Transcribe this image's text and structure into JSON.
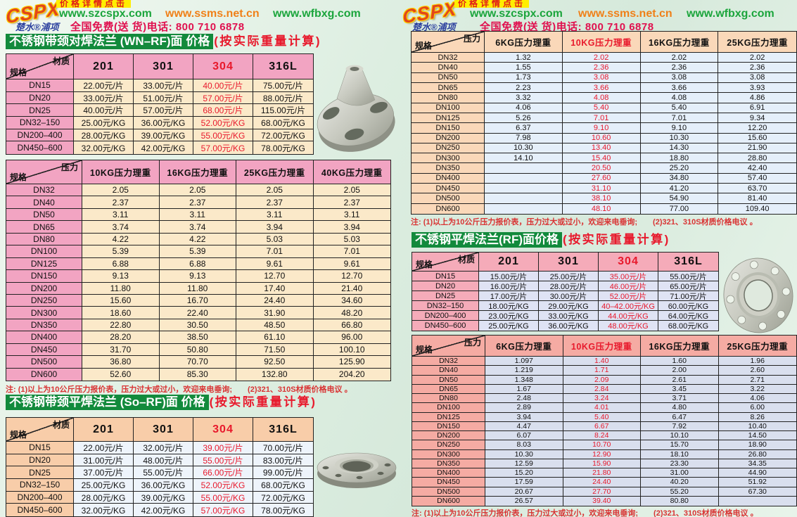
{
  "brand": {
    "logo": "CSPX",
    "sub_logo": "楚水®浦项",
    "promo": "价格详情点击",
    "sites": {
      "s1": "www.szcspx.com",
      "s2": "www.ssms.net.cn",
      "s3": "www.wfbxg.com"
    },
    "phone_line": "全国免费(送 货)电话: 800 710 6878"
  },
  "colors": {
    "title_green": "#128a3c",
    "accent_red": "#e8192c",
    "phone_red": "#e0114f",
    "site_green": "#1ba53c",
    "site_orange": "#f08018",
    "promo_yellow": "#ffee00"
  },
  "notes": {
    "pressure_note": "注: (1)以上为10公斤压力报价表，压力过大或过小，欢迎来电垂询;　　(2)321、310S材质价格电议 。"
  },
  "left": {
    "title1_main": "不锈钢带颈对焊法兰 (WN–RF)面 价格",
    "title1_sub": "(按实际重量计算)",
    "title2_main": "不锈钢带颈平焊法兰 (So–RF)面 价格",
    "title2_sub": "(按实际重量计算)",
    "table1": {
      "corner_top": "材质",
      "corner_bottom": "规格",
      "red_col": 2,
      "columns": [
        "201",
        "301",
        "304",
        "316L"
      ],
      "rows": [
        {
          "label": "DN15",
          "values": [
            "22.00元/片",
            "33.00元/片",
            "40.00元/片",
            "75.00元/片"
          ]
        },
        {
          "label": "DN20",
          "values": [
            "33.00元/片",
            "51.00元/片",
            "57.00元/片",
            "88.00元/片"
          ]
        },
        {
          "label": "DN25",
          "values": [
            "40.00元/片",
            "57.00元/片",
            "68.00元/片",
            "115.00元/片"
          ]
        },
        {
          "label": "DN32–150",
          "values": [
            "25.00元/KG",
            "36.00元/KG",
            "52.00元/KG",
            "68.00元/KG"
          ]
        },
        {
          "label": "DN200–400",
          "values": [
            "28.00元/KG",
            "39.00元/KG",
            "55.00元/KG",
            "72.00元/KG"
          ]
        },
        {
          "label": "DN450–600",
          "values": [
            "32.00元/KG",
            "42.00元/KG",
            "57.00元/KG",
            "78.00元/KG"
          ]
        }
      ]
    },
    "table2": {
      "corner_top": "压力",
      "corner_bottom": "规格",
      "red_col": null,
      "columns": [
        "10KG压力理重",
        "16KG压力理重",
        "25KG压力理重",
        "40KG压力理重"
      ],
      "rows": [
        {
          "label": "DN32",
          "values": [
            "2.05",
            "2.05",
            "2.05",
            "2.05"
          ]
        },
        {
          "label": "DN40",
          "values": [
            "2.37",
            "2.37",
            "2.37",
            "2.37"
          ]
        },
        {
          "label": "DN50",
          "values": [
            "3.11",
            "3.11",
            "3.11",
            "3.11"
          ]
        },
        {
          "label": "DN65",
          "values": [
            "3.74",
            "3.74",
            "3.94",
            "3.94"
          ]
        },
        {
          "label": "DN80",
          "values": [
            "4.22",
            "4.22",
            "5.03",
            "5.03"
          ]
        },
        {
          "label": "DN100",
          "values": [
            "5.39",
            "5.39",
            "7.01",
            "7.01"
          ]
        },
        {
          "label": "DN125",
          "values": [
            "6.88",
            "6.88",
            "9.61",
            "9.61"
          ]
        },
        {
          "label": "DN150",
          "values": [
            "9.13",
            "9.13",
            "12.70",
            "12.70"
          ]
        },
        {
          "label": "DN200",
          "values": [
            "11.80",
            "11.80",
            "17.40",
            "21.40"
          ]
        },
        {
          "label": "DN250",
          "values": [
            "15.60",
            "16.70",
            "24.40",
            "34.60"
          ]
        },
        {
          "label": "DN300",
          "values": [
            "18.60",
            "22.40",
            "31.90",
            "48.20"
          ]
        },
        {
          "label": "DN350",
          "values": [
            "22.80",
            "30.50",
            "48.50",
            "66.80"
          ]
        },
        {
          "label": "DN400",
          "values": [
            "28.20",
            "38.50",
            "61.10",
            "96.00"
          ]
        },
        {
          "label": "DN450",
          "values": [
            "31.70",
            "50.80",
            "71.50",
            "100.10"
          ]
        },
        {
          "label": "DN500",
          "values": [
            "36.80",
            "70.70",
            "92.50",
            "125.90"
          ]
        },
        {
          "label": "DN600",
          "values": [
            "52.60",
            "85.30",
            "132.80",
            "204.20"
          ]
        }
      ]
    },
    "table3": {
      "corner_top": "材质",
      "corner_bottom": "规格",
      "red_col": 2,
      "columns": [
        "201",
        "301",
        "304",
        "316L"
      ],
      "rows": [
        {
          "label": "DN15",
          "values": [
            "22.00元/片",
            "32.00元/片",
            "39.00元/片",
            "70.00元/片"
          ]
        },
        {
          "label": "DN20",
          "values": [
            "31.00元/片",
            "48.00元/片",
            "55.00元/片",
            "83.00元/片"
          ]
        },
        {
          "label": "DN25",
          "values": [
            "37.00元/片",
            "55.00元/片",
            "66.00元/片",
            "99.00元/片"
          ]
        },
        {
          "label": "DN32–150",
          "values": [
            "25.00元/KG",
            "36.00元/KG",
            "52.00元/KG",
            "68.00元/KG"
          ]
        },
        {
          "label": "DN200–400",
          "values": [
            "28.00元/KG",
            "39.00元/KG",
            "55.00元/KG",
            "72.00元/KG"
          ]
        },
        {
          "label": "DN450–600",
          "values": [
            "32.00元/KG",
            "42.00元/KG",
            "57.00元/KG",
            "78.00元/KG"
          ]
        }
      ]
    }
  },
  "right": {
    "title_main": "不锈钢平焊法兰(RF)面价格",
    "title_sub": "(按实际重量计算)",
    "table1": {
      "corner_top": "压力",
      "corner_bottom": "规格",
      "red_col": 1,
      "columns": [
        "6KG压力理重",
        "10KG压力理重",
        "16KG压力理重",
        "25KG压力理重"
      ],
      "rows": [
        {
          "label": "DN32",
          "values": [
            "1.32",
            "2.02",
            "2.02",
            "2.02"
          ]
        },
        {
          "label": "DN40",
          "values": [
            "1.55",
            "2.36",
            "2.36",
            "2.36"
          ]
        },
        {
          "label": "DN50",
          "values": [
            "1.73",
            "3.08",
            "3.08",
            "3.08"
          ]
        },
        {
          "label": "DN65",
          "values": [
            "2.23",
            "3.66",
            "3.66",
            "3.93"
          ]
        },
        {
          "label": "DN80",
          "values": [
            "3.32",
            "4.08",
            "4.08",
            "4.86"
          ]
        },
        {
          "label": "DN100",
          "values": [
            "4.06",
            "5.40",
            "5.40",
            "6.91"
          ]
        },
        {
          "label": "DN125",
          "values": [
            "5.26",
            "7.01",
            "7.01",
            "9.34"
          ]
        },
        {
          "label": "DN150",
          "values": [
            "6.37",
            "9.10",
            "9.10",
            "12.20"
          ]
        },
        {
          "label": "DN200",
          "values": [
            "7.98",
            "10.60",
            "10.30",
            "15.60"
          ]
        },
        {
          "label": "DN250",
          "values": [
            "10.30",
            "13.40",
            "14.30",
            "21.90"
          ]
        },
        {
          "label": "DN300",
          "values": [
            "14.10",
            "15.40",
            "18.80",
            "28.80"
          ]
        },
        {
          "label": "DN350",
          "values": [
            "",
            "20.50",
            "25.20",
            "42.40"
          ]
        },
        {
          "label": "DN400",
          "values": [
            "",
            "27.60",
            "34.80",
            "57.40"
          ]
        },
        {
          "label": "DN450",
          "values": [
            "",
            "31.10",
            "41.20",
            "63.70"
          ]
        },
        {
          "label": "DN500",
          "values": [
            "",
            "38.10",
            "54.90",
            "81.40"
          ]
        },
        {
          "label": "DN600",
          "values": [
            "",
            "48.10",
            "77.00",
            "109.40"
          ]
        }
      ]
    },
    "table2": {
      "corner_top": "材质",
      "corner_bottom": "规格",
      "red_col": 2,
      "columns": [
        "201",
        "301",
        "304",
        "316L"
      ],
      "rows": [
        {
          "label": "DN15",
          "values": [
            "15.00元/片",
            "25.00元/片",
            "35.00元/片",
            "55.00元/片"
          ]
        },
        {
          "label": "DN20",
          "values": [
            "16.00元/片",
            "28.00元/片",
            "46.00元/片",
            "65.00元/片"
          ]
        },
        {
          "label": "DN25",
          "values": [
            "17.00元/片",
            "30.00元/片",
            "52.00元/片",
            "71.00元/片"
          ]
        },
        {
          "label": "DN32–150",
          "values": [
            "18.00元/KG",
            "29.00元/KG",
            "40–42.00元/KG",
            "60.00元/KG"
          ]
        },
        {
          "label": "DN200–400",
          "values": [
            "23.00元/KG",
            "33.00元/KG",
            "44.00元/KG",
            "64.00元/KG"
          ]
        },
        {
          "label": "DN450–600",
          "values": [
            "25.00元/KG",
            "36.00元/KG",
            "48.00元/KG",
            "68.00元/KG"
          ]
        }
      ]
    },
    "table3": {
      "corner_top": "压力",
      "corner_bottom": "规格",
      "red_col": 1,
      "columns": [
        "6KG压力理重",
        "10KG压力理重",
        "16KG压力理重",
        "25KG压力理重"
      ],
      "rows": [
        {
          "label": "DN32",
          "values": [
            "1.097",
            "1.40",
            "1.60",
            "1.96"
          ]
        },
        {
          "label": "DN40",
          "values": [
            "1.219",
            "1.71",
            "2.00",
            "2.60"
          ]
        },
        {
          "label": "DN50",
          "values": [
            "1.348",
            "2.09",
            "2.61",
            "2.71"
          ]
        },
        {
          "label": "DN65",
          "values": [
            "1.67",
            "2.84",
            "3.45",
            "3.22"
          ]
        },
        {
          "label": "DN80",
          "values": [
            "2.48",
            "3.24",
            "3.71",
            "4.06"
          ]
        },
        {
          "label": "DN100",
          "values": [
            "2.89",
            "4.01",
            "4.80",
            "6.00"
          ]
        },
        {
          "label": "DN125",
          "values": [
            "3.94",
            "5.40",
            "6.47",
            "8.26"
          ]
        },
        {
          "label": "DN150",
          "values": [
            "4.47",
            "6.67",
            "7.92",
            "10.40"
          ]
        },
        {
          "label": "DN200",
          "values": [
            "6.07",
            "8.24",
            "10.10",
            "14.50"
          ]
        },
        {
          "label": "DN250",
          "values": [
            "8.03",
            "10.70",
            "15.70",
            "18.90"
          ]
        },
        {
          "label": "DN300",
          "values": [
            "10.30",
            "12.90",
            "18.10",
            "26.80"
          ]
        },
        {
          "label": "DN350",
          "values": [
            "12.59",
            "15.90",
            "23.30",
            "34.35"
          ]
        },
        {
          "label": "DN400",
          "values": [
            "15.20",
            "21.80",
            "31.00",
            "44.90"
          ]
        },
        {
          "label": "DN450",
          "values": [
            "17.59",
            "24.40",
            "40.20",
            "51.92"
          ]
        },
        {
          "label": "DN500",
          "values": [
            "20.67",
            "27.70",
            "55.20",
            "67.30"
          ]
        },
        {
          "label": "DN600",
          "values": [
            "26.57",
            "39.40",
            "80.80",
            ""
          ]
        }
      ]
    }
  }
}
